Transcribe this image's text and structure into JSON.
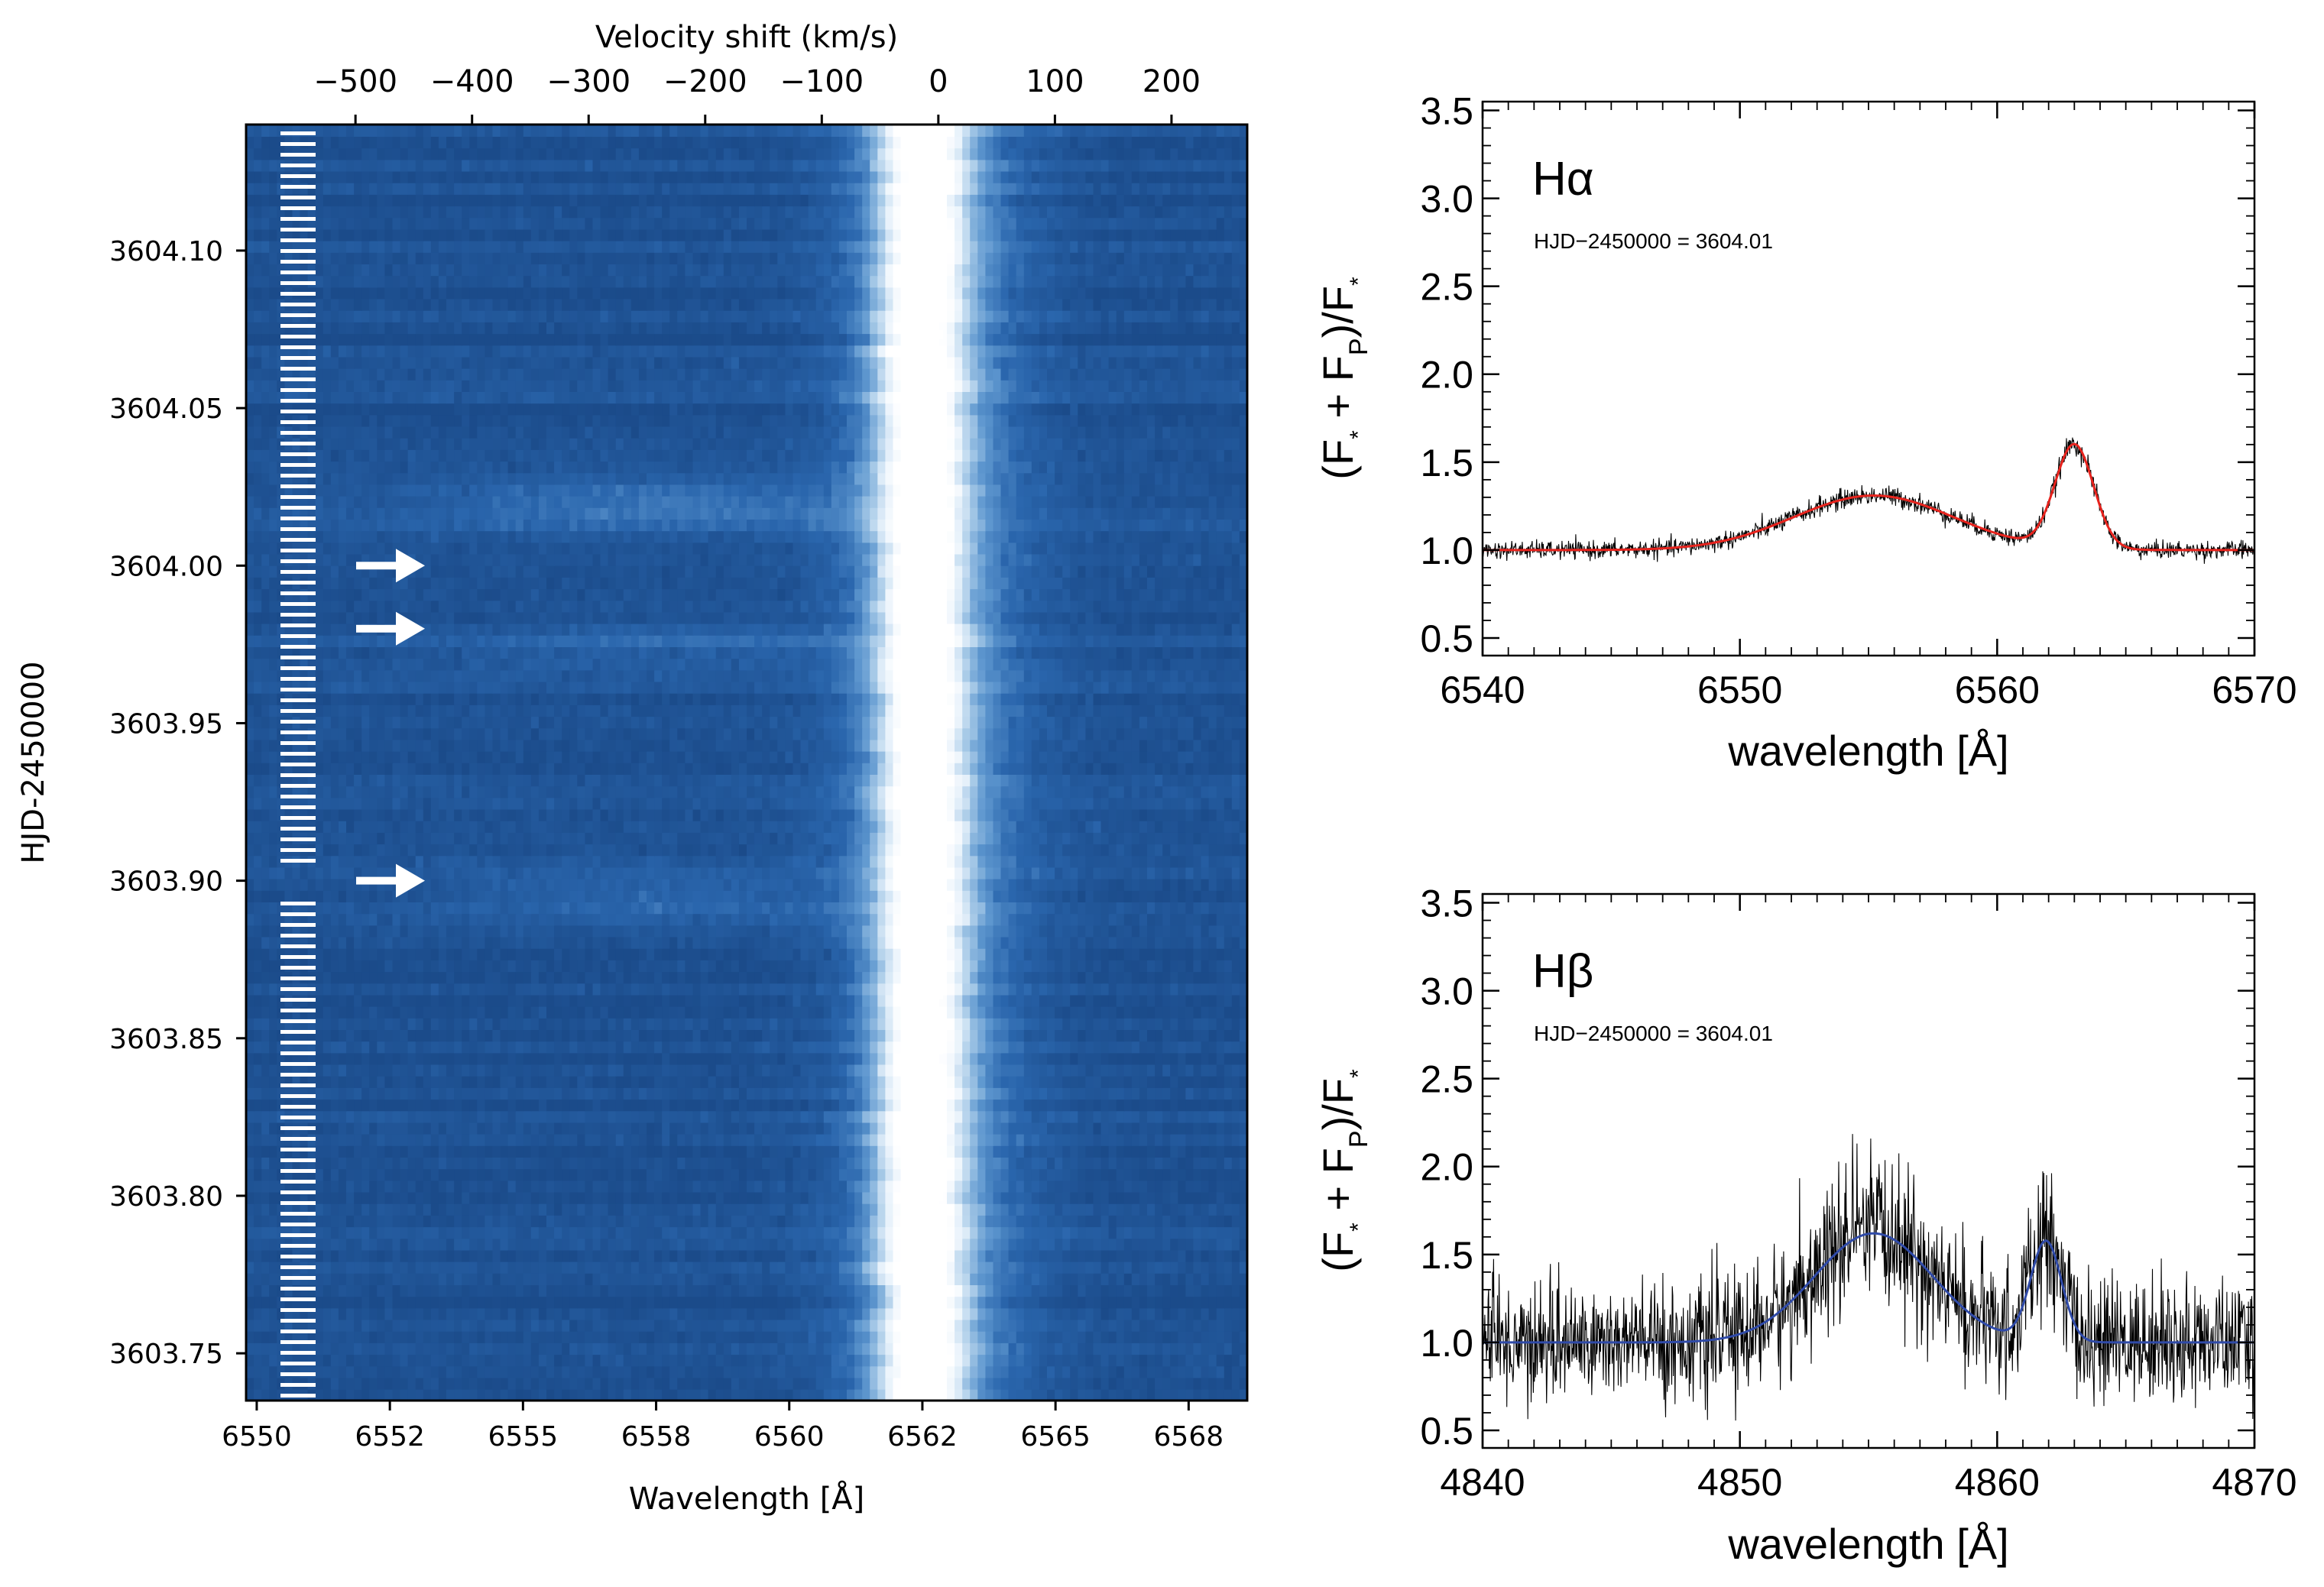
{
  "chart_data": [
    {
      "type": "heatmap",
      "title": "",
      "xlabel": "Wavelength [Å]",
      "ylabel": "HJD-2450000",
      "top_axis_label": "Velocity shift (km/s)",
      "xlim": [
        6549.8,
        6568.6
      ],
      "ylim": [
        3603.735,
        3604.14
      ],
      "x_ticks": [
        {
          "value": 6550.0,
          "label": "6550"
        },
        {
          "value": 6552.5,
          "label": "6552"
        },
        {
          "value": 6555.0,
          "label": "6555"
        },
        {
          "value": 6557.5,
          "label": "6558"
        },
        {
          "value": 6560.0,
          "label": "6560"
        },
        {
          "value": 6562.5,
          "label": "6562"
        },
        {
          "value": 6565.0,
          "label": "6565"
        },
        {
          "value": 6567.5,
          "label": "6568"
        }
      ],
      "top_ticks": [
        {
          "value": -500,
          "label": "−500"
        },
        {
          "value": -400,
          "label": "−400"
        },
        {
          "value": -300,
          "label": "−300"
        },
        {
          "value": -200,
          "label": "−200"
        },
        {
          "value": -100,
          "label": "−100"
        },
        {
          "value": 0,
          "label": "0"
        },
        {
          "value": 100,
          "label": "100"
        },
        {
          "value": 200,
          "label": "200"
        }
      ],
      "y_ticks": [
        {
          "value": 3603.75,
          "label": "3603.75"
        },
        {
          "value": 3603.8,
          "label": "3603.80"
        },
        {
          "value": 3603.85,
          "label": "3603.85"
        },
        {
          "value": 3603.9,
          "label": "3603.90"
        },
        {
          "value": 3603.95,
          "label": "3603.95"
        },
        {
          "value": 3604.0,
          "label": "3604.00"
        },
        {
          "value": 3604.05,
          "label": "3604.05"
        },
        {
          "value": 3604.1,
          "label": "3604.10"
        }
      ],
      "rest_wavelength": 6562.8,
      "colormap": [
        "#1b4b8a",
        "#2a66ad",
        "#5e97cf",
        "#a9cbe8",
        "#e8f2fb",
        "#ffffff"
      ],
      "emission_profile": {
        "core_center": 6562.5,
        "core_width": 0.55,
        "wing_center": 6562.7,
        "wing_width": 1.2
      },
      "flare_bands": [
        {
          "time": 3604.02,
          "strength": 0.6
        },
        {
          "time": 3603.975,
          "strength": 0.35
        },
        {
          "time": 3603.895,
          "strength": 0.45
        }
      ],
      "marked_times": [
        3604.0,
        3603.98,
        3603.9
      ],
      "observation_gap": [
        3603.894,
        3603.904
      ]
    },
    {
      "type": "line",
      "title": "",
      "line_label": "Hα",
      "annotation": "HJD−2450000 = 3604.01",
      "xlabel": "wavelength [Å]",
      "ylabel_parts": {
        "open": "(F",
        "star_sub": "*",
        "plus": " + F",
        "p_sub": "P",
        "close": ")/F",
        "star_sub2": "*"
      },
      "xlim": [
        6540,
        6570
      ],
      "ylim": [
        0.4,
        3.55
      ],
      "x_ticks": [
        6540,
        6550,
        6560,
        6570
      ],
      "x_tick_labels": [
        "6540",
        "6550",
        "6560",
        "6570"
      ],
      "y_ticks": [
        0.5,
        1.0,
        1.5,
        2.0,
        2.5,
        3.0,
        3.5
      ],
      "y_tick_labels": [
        "0.5",
        "1.0",
        "1.5",
        "2.0",
        "2.5",
        "3.0",
        "3.5"
      ],
      "series": [
        {
          "role": "observed",
          "color": "#000000",
          "noise": 0.025
        },
        {
          "role": "fit",
          "color": "#e8231d",
          "components": [
            {
              "center": 6555.2,
              "amplitude": 0.31,
              "sigma": 3.1
            },
            {
              "center": 6563.0,
              "amplitude": 0.59,
              "sigma": 0.75
            }
          ]
        }
      ]
    },
    {
      "type": "line",
      "title": "",
      "line_label": "Hβ",
      "annotation": "HJD−2450000 = 3604.01",
      "xlabel": "wavelength [Å]",
      "ylabel_parts": {
        "open": "(F",
        "star_sub": "*",
        "plus": " + F",
        "p_sub": "P",
        "close": ")/F",
        "star_sub2": "*"
      },
      "xlim": [
        4840,
        4870
      ],
      "ylim": [
        0.4,
        3.55
      ],
      "x_ticks": [
        4840,
        4850,
        4860,
        4870
      ],
      "x_tick_labels": [
        "4840",
        "4850",
        "4860",
        "4870"
      ],
      "y_ticks": [
        0.5,
        1.0,
        1.5,
        2.0,
        2.5,
        3.0,
        3.5
      ],
      "y_tick_labels": [
        "0.5",
        "1.0",
        "1.5",
        "2.0",
        "2.5",
        "3.0",
        "3.5"
      ],
      "series": [
        {
          "role": "observed",
          "color": "#000000",
          "noise": 0.17
        },
        {
          "role": "fit",
          "color": "#2f4aa8",
          "components": [
            {
              "center": 4855.2,
              "amplitude": 0.62,
              "sigma": 2.3
            },
            {
              "center": 4861.9,
              "amplitude": 0.57,
              "sigma": 0.6
            }
          ]
        }
      ]
    }
  ]
}
